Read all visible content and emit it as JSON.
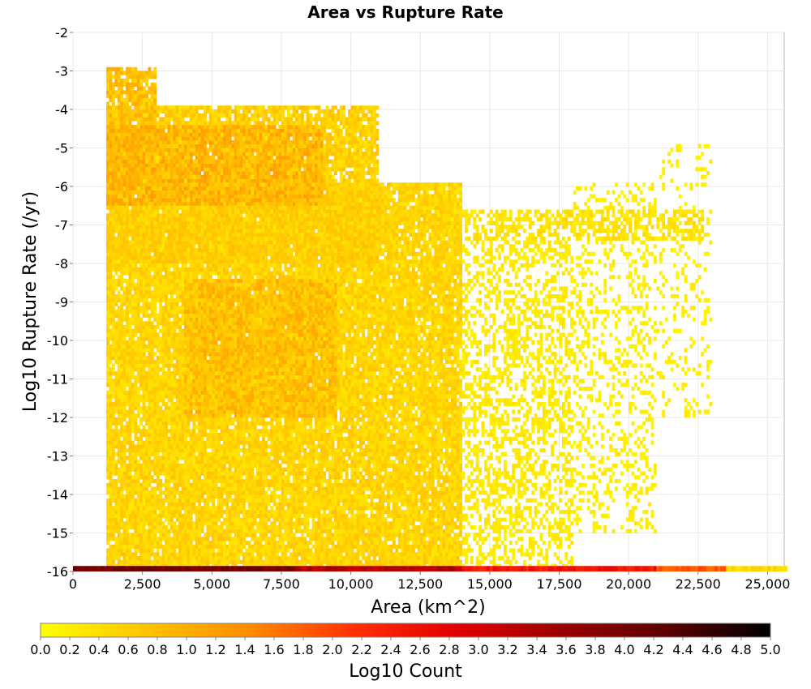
{
  "chart_data": {
    "type": "heatmap",
    "title": "Area vs Rupture Rate",
    "xlabel": "Area (km^2)",
    "ylabel": "Log10 Rupture Rate (/yr)",
    "xlim": [
      0,
      25600
    ],
    "ylim": [
      -16,
      -2
    ],
    "x_ticks": [
      0,
      2500,
      5000,
      7500,
      10000,
      12500,
      15000,
      17500,
      20000,
      22500,
      25000
    ],
    "x_tick_labels": [
      "0",
      "2,500",
      "5,000",
      "7,500",
      "10,000",
      "12,500",
      "15,000",
      "17,500",
      "20,000",
      "22,500",
      "25,000"
    ],
    "y_ticks": [
      -2,
      -3,
      -4,
      -5,
      -6,
      -7,
      -8,
      -9,
      -10,
      -11,
      -12,
      -13,
      -14,
      -15,
      -16
    ],
    "y_tick_labels": [
      "-2",
      "-3",
      "-4",
      "-5",
      "-6",
      "-7",
      "-8",
      "-9",
      "-10",
      "-11",
      "-12",
      "-13",
      "-14",
      "-15",
      "-16"
    ],
    "grid": true,
    "colorbar": {
      "label": "Log10 Count",
      "range": [
        0,
        5
      ],
      "tick_labels": [
        "0.0",
        "0.2",
        "0.4",
        "0.6",
        "0.8",
        "1.0",
        "1.2",
        "1.4",
        "1.6",
        "1.8",
        "2.0",
        "2.2",
        "2.4",
        "2.6",
        "2.8",
        "3.0",
        "3.2",
        "3.4",
        "3.6",
        "3.8",
        "4.0",
        "4.2",
        "4.4",
        "4.6",
        "4.8",
        "5.0"
      ],
      "colors": [
        "#ffff00",
        "#ffc400",
        "#ff8c00",
        "#ff3000",
        "#e00000",
        "#9a0000",
        "#5c0000",
        "#000000"
      ]
    },
    "bin_size": {
      "x": 100,
      "y": 0.1
    },
    "regions": [
      {
        "x": [
          1200,
          3000
        ],
        "y": [
          -6,
          -3
        ],
        "log10_count": 0.75,
        "density": 0.85
      },
      {
        "x": [
          1200,
          9000
        ],
        "y": [
          -6.5,
          -4.5
        ],
        "log10_count": 0.85,
        "density": 0.9
      },
      {
        "x": [
          1200,
          11000
        ],
        "y": [
          -8,
          -4
        ],
        "log10_count": 0.55,
        "density": 0.85
      },
      {
        "x": [
          1200,
          14000
        ],
        "y": [
          -15.9,
          -6
        ],
        "log10_count": 0.5,
        "density": 0.92
      },
      {
        "x": [
          4000,
          9500
        ],
        "y": [
          -12,
          -8.5
        ],
        "log10_count": 0.75,
        "density": 0.9
      },
      {
        "x": [
          14000,
          18000
        ],
        "y": [
          -15.9,
          -7.5
        ],
        "log10_count": 0.25,
        "density": 0.45
      },
      {
        "x": [
          18000,
          21000
        ],
        "y": [
          -15,
          -6
        ],
        "log10_count": 0.2,
        "density": 0.25
      },
      {
        "x": [
          13000,
          22700
        ],
        "y": [
          -7.4,
          -6.7
        ],
        "log10_count": 0.35,
        "density": 0.55
      },
      {
        "x": [
          21000,
          23000
        ],
        "y": [
          -12,
          -5
        ],
        "log10_count": 0.2,
        "density": 0.15
      }
    ],
    "bottom_row": [
      {
        "x": [
          0,
          8000
        ],
        "log10_count": 4.0
      },
      {
        "x": [
          8000,
          14000
        ],
        "log10_count": 3.3
      },
      {
        "x": [
          14000,
          21000
        ],
        "log10_count": 2.5
      },
      {
        "x": [
          21000,
          23500
        ],
        "log10_count": 1.8
      },
      {
        "x": [
          23500,
          25700
        ],
        "log10_count": 0.5
      }
    ]
  }
}
